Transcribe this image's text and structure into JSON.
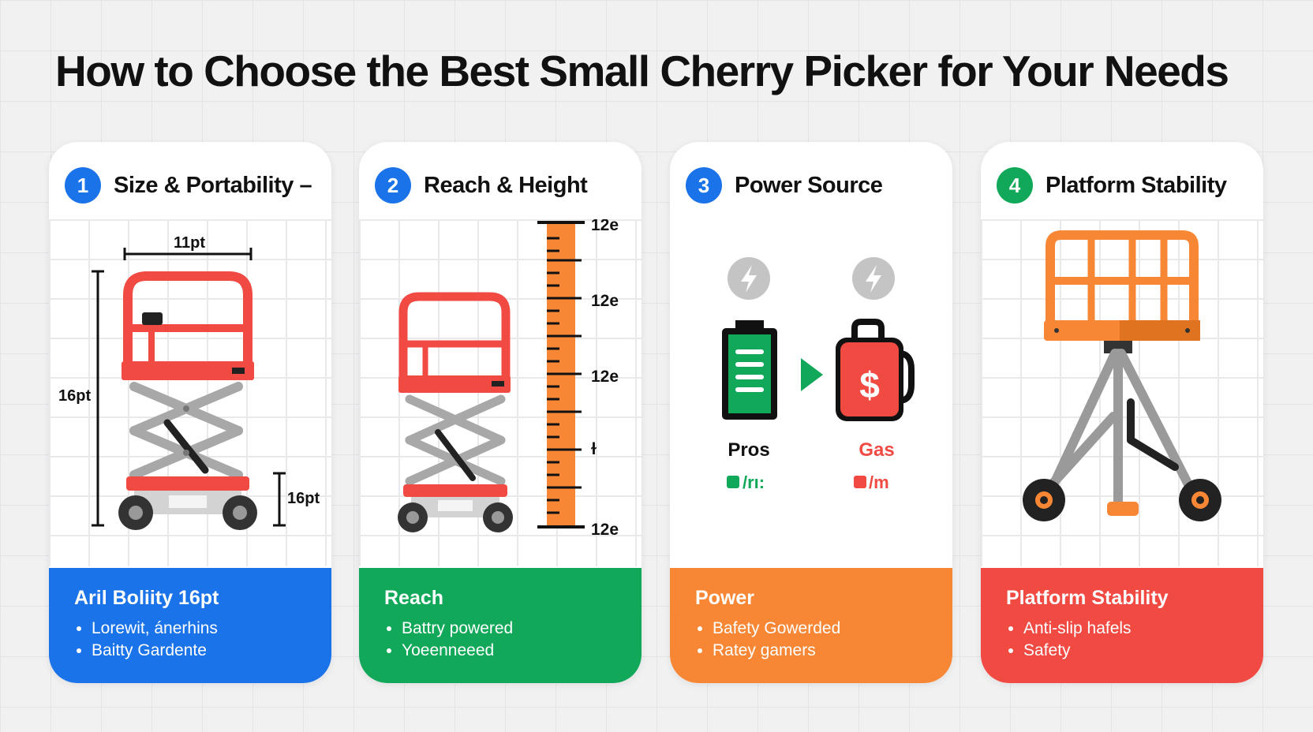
{
  "title": "How to Choose the Best Small Cherry Picker for Your Needs",
  "colors": {
    "blue": "#1a73e8",
    "green": "#12a85a",
    "orange": "#f78734",
    "red": "#f04a43",
    "orange_dark": "#e0731f"
  },
  "cards": [
    {
      "number": "1",
      "heading": "Size & Portability –",
      "dims": {
        "top": "11pt",
        "left": "16pt",
        "right": "16pt"
      },
      "footer_title": "Aril Boliity 16pt",
      "bullets": [
        "Lorewit, ánerhins",
        "Baitty Gardente"
      ],
      "icon": "scissor-lift-icon"
    },
    {
      "number": "2",
      "heading": "Reach & Height",
      "ruler_labels": [
        "12e",
        "12e",
        "12e",
        "ɫ",
        "12e"
      ],
      "footer_title": "Reach",
      "bullets": [
        "Battry powered",
        "Yoeenneeed"
      ],
      "icon": "scissor-lift-icon"
    },
    {
      "number": "3",
      "heading": "Power Source",
      "left_label": "Pros",
      "left_sub": "/rı:",
      "right_label": "Gas",
      "right_sub": "/m",
      "footer_title": "Power",
      "bullets": [
        "Bafety Gowerded",
        "Ratey gamers"
      ],
      "icon": "battery-icon"
    },
    {
      "number": "4",
      "heading": "Platform Stability",
      "footer_title": "Platform Stability",
      "bullets": [
        "Anti-slip hafels",
        "Safety"
      ],
      "icon": "platform-icon"
    }
  ]
}
